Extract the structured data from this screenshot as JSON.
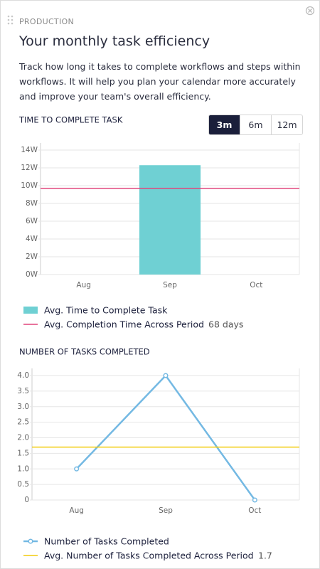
{
  "header": {
    "section": "PRODUCTION",
    "title": "Your monthly task efficiency",
    "description": "Track how long it takes to complete workflows and steps within workflows. It will help you plan your calendar more accurately and improve your team's overall efficiency."
  },
  "range_buttons": [
    {
      "label": "3m",
      "active": true
    },
    {
      "label": "6m",
      "active": false
    },
    {
      "label": "12m",
      "active": false
    }
  ],
  "chart_data": [
    {
      "type": "bar",
      "title": "TIME TO COMPLETE TASK",
      "categories": [
        "Aug",
        "Sep",
        "Oct"
      ],
      "series": [
        {
          "name": "Avg. Time to Complete Task",
          "color": "#6fd0d3",
          "values": [
            0,
            12.3,
            0
          ]
        }
      ],
      "reference_line": {
        "name": "Avg. Completion Time Across Period",
        "value": 9.7,
        "value_label": "68 days",
        "color": "#e0457b"
      },
      "ylim": [
        0,
        14
      ],
      "yticks": [
        {
          "value": 0,
          "label": "0W"
        },
        {
          "value": 2,
          "label": "2W"
        },
        {
          "value": 4,
          "label": "4W"
        },
        {
          "value": 6,
          "label": "6W"
        },
        {
          "value": 8,
          "label": "8W"
        },
        {
          "value": 10,
          "label": "10W"
        },
        {
          "value": 12,
          "label": "12W"
        },
        {
          "value": 14,
          "label": "14W"
        }
      ],
      "grid": true
    },
    {
      "type": "line",
      "title": "NUMBER OF TASKS COMPLETED",
      "categories": [
        "Aug",
        "Sep",
        "Oct"
      ],
      "series": [
        {
          "name": "Number of Tasks Completed",
          "color": "#74b9e3",
          "values": [
            1,
            4,
            0
          ]
        }
      ],
      "reference_line": {
        "name": "Avg. Number of Tasks Completed Across Period",
        "value": 1.7,
        "color": "#f2cc0c"
      },
      "ylim": [
        0,
        4
      ],
      "yticks": [
        0,
        {
          "value": 0.5,
          "label": "0.5"
        },
        {
          "value": 1,
          "label": "1.0"
        },
        {
          "value": 1.5,
          "label": "1.5"
        },
        {
          "value": 2,
          "label": "2.0"
        },
        {
          "value": 2.5,
          "label": "2.5"
        },
        {
          "value": 3,
          "label": "3.0"
        },
        {
          "value": 3.5,
          "label": "3.5"
        },
        {
          "value": 4,
          "label": "4.0"
        }
      ],
      "grid": true
    }
  ]
}
